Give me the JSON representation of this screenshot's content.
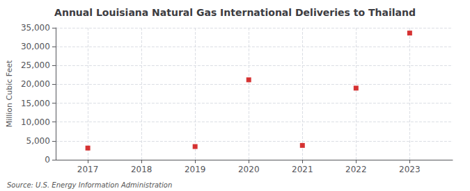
{
  "chart_data": {
    "type": "scatter",
    "title": "Annual Louisiana Natural Gas International Deliveries to Thailand",
    "ylabel": "Million Cubic Feet",
    "annotations": [
      "Source: U.S. Energy Information Administration"
    ],
    "x": [
      2017,
      2019,
      2020,
      2021,
      2022,
      2023
    ],
    "values": [
      3100,
      3500,
      21200,
      3800,
      19000,
      33600
    ],
    "color": "#cc0000",
    "marker": "square",
    "xlim": [
      2016.4,
      2023.8
    ],
    "xticks": [
      2017,
      2018,
      2019,
      2020,
      2021,
      2022,
      2023
    ],
    "ylim": [
      0,
      35000
    ],
    "yticks": [
      0,
      {
        "value": 5000,
        "label": "5,000"
      },
      {
        "value": 10000,
        "label": "10,000"
      },
      {
        "value": 15000,
        "label": "15,000"
      },
      {
        "value": 20000,
        "label": "20,000"
      },
      {
        "value": 25000,
        "label": "25,000"
      },
      {
        "value": 30000,
        "label": "30,000"
      },
      {
        "value": 35000,
        "label": "35,000"
      }
    ],
    "grid": true
  }
}
